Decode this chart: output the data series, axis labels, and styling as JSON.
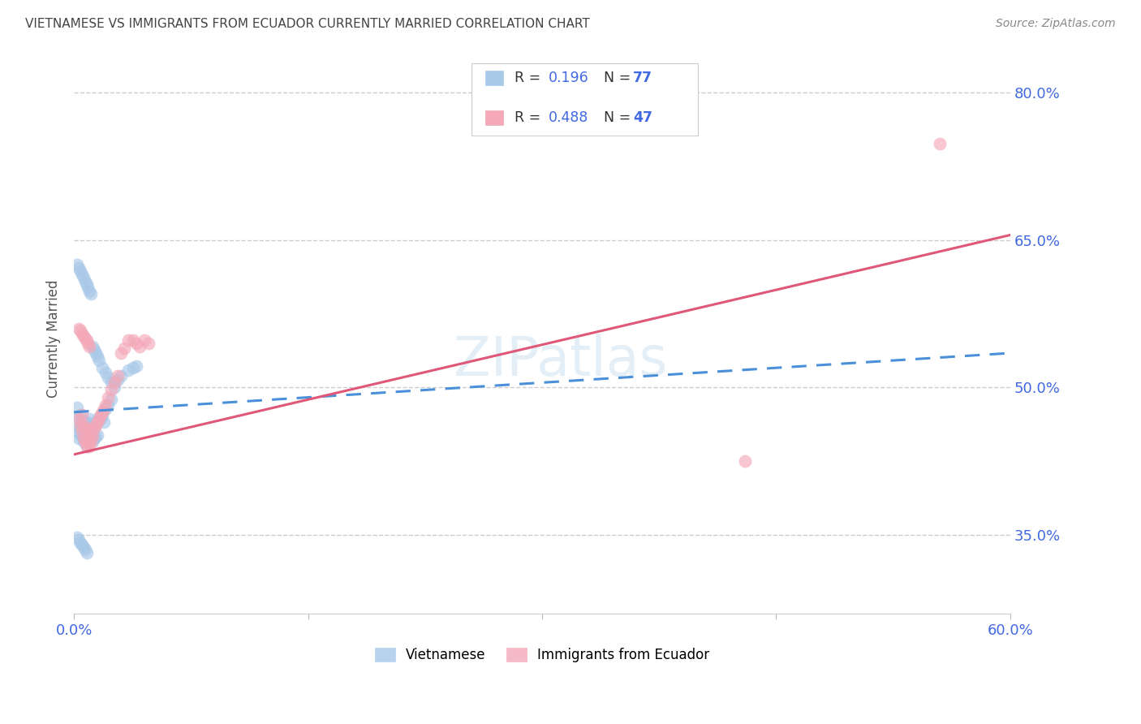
{
  "title": "VIETNAMESE VS IMMIGRANTS FROM ECUADOR CURRENTLY MARRIED CORRELATION CHART",
  "source": "Source: ZipAtlas.com",
  "ylabel": "Currently Married",
  "ytick_labels": [
    "35.0%",
    "50.0%",
    "65.0%",
    "80.0%"
  ],
  "ytick_values": [
    0.35,
    0.5,
    0.65,
    0.8
  ],
  "xmin": 0.0,
  "xmax": 0.6,
  "ymin": 0.27,
  "ymax": 0.83,
  "legend1_R": "0.196",
  "legend1_N": "77",
  "legend2_R": "0.488",
  "legend2_N": "47",
  "color_vietnamese": "#a8c8e8",
  "color_ecuador": "#f4a8b8",
  "color_trendline_blue": "#4a90d9",
  "color_trendline_pink": "#e05878",
  "color_axis_label": "#4169E1",
  "color_title": "#444444",
  "color_source": "#888888",
  "color_grid": "#cccccc",
  "watermark": "ZIPatlas",
  "watermark_color": "#c8dff0",
  "viet_x": [
    0.002,
    0.002,
    0.003,
    0.003,
    0.003,
    0.004,
    0.004,
    0.004,
    0.004,
    0.005,
    0.005,
    0.005,
    0.006,
    0.006,
    0.006,
    0.007,
    0.007,
    0.007,
    0.008,
    0.008,
    0.008,
    0.009,
    0.009,
    0.009,
    0.01,
    0.01,
    0.01,
    0.011,
    0.011,
    0.012,
    0.012,
    0.013,
    0.013,
    0.014,
    0.014,
    0.015,
    0.015,
    0.016,
    0.017,
    0.018,
    0.019,
    0.02,
    0.022,
    0.024,
    0.026,
    0.028,
    0.03,
    0.035,
    0.038,
    0.04,
    0.002,
    0.003,
    0.004,
    0.005,
    0.006,
    0.007,
    0.008,
    0.009,
    0.01,
    0.011,
    0.012,
    0.013,
    0.014,
    0.015,
    0.016,
    0.018,
    0.02,
    0.022,
    0.024,
    0.026,
    0.002,
    0.003,
    0.004,
    0.005,
    0.006,
    0.007,
    0.008
  ],
  "viet_y": [
    0.47,
    0.48,
    0.46,
    0.455,
    0.448,
    0.452,
    0.458,
    0.465,
    0.472,
    0.45,
    0.458,
    0.465,
    0.445,
    0.455,
    0.462,
    0.448,
    0.455,
    0.465,
    0.44,
    0.452,
    0.462,
    0.445,
    0.455,
    0.465,
    0.448,
    0.458,
    0.468,
    0.45,
    0.462,
    0.445,
    0.458,
    0.448,
    0.462,
    0.45,
    0.465,
    0.452,
    0.465,
    0.47,
    0.468,
    0.472,
    0.465,
    0.478,
    0.482,
    0.488,
    0.505,
    0.508,
    0.512,
    0.518,
    0.52,
    0.522,
    0.625,
    0.622,
    0.618,
    0.615,
    0.612,
    0.608,
    0.605,
    0.602,
    0.598,
    0.595,
    0.542,
    0.538,
    0.535,
    0.532,
    0.528,
    0.52,
    0.515,
    0.51,
    0.505,
    0.5,
    0.348,
    0.345,
    0.342,
    0.34,
    0.338,
    0.335,
    0.332
  ],
  "ecu_x": [
    0.003,
    0.004,
    0.005,
    0.005,
    0.006,
    0.006,
    0.007,
    0.007,
    0.008,
    0.008,
    0.009,
    0.009,
    0.01,
    0.01,
    0.011,
    0.011,
    0.012,
    0.013,
    0.014,
    0.015,
    0.016,
    0.017,
    0.018,
    0.019,
    0.02,
    0.022,
    0.024,
    0.026,
    0.028,
    0.03,
    0.032,
    0.035,
    0.038,
    0.04,
    0.042,
    0.045,
    0.048,
    0.003,
    0.004,
    0.005,
    0.006,
    0.007,
    0.008,
    0.009,
    0.01,
    0.43,
    0.555
  ],
  "ecu_y": [
    0.468,
    0.462,
    0.455,
    0.472,
    0.448,
    0.462,
    0.445,
    0.458,
    0.44,
    0.452,
    0.445,
    0.458,
    0.44,
    0.452,
    0.445,
    0.455,
    0.45,
    0.458,
    0.462,
    0.465,
    0.468,
    0.472,
    0.475,
    0.478,
    0.482,
    0.49,
    0.498,
    0.505,
    0.512,
    0.535,
    0.54,
    0.548,
    0.548,
    0.545,
    0.542,
    0.548,
    0.545,
    0.56,
    0.558,
    0.555,
    0.552,
    0.55,
    0.548,
    0.545,
    0.542,
    0.425,
    0.748
  ]
}
